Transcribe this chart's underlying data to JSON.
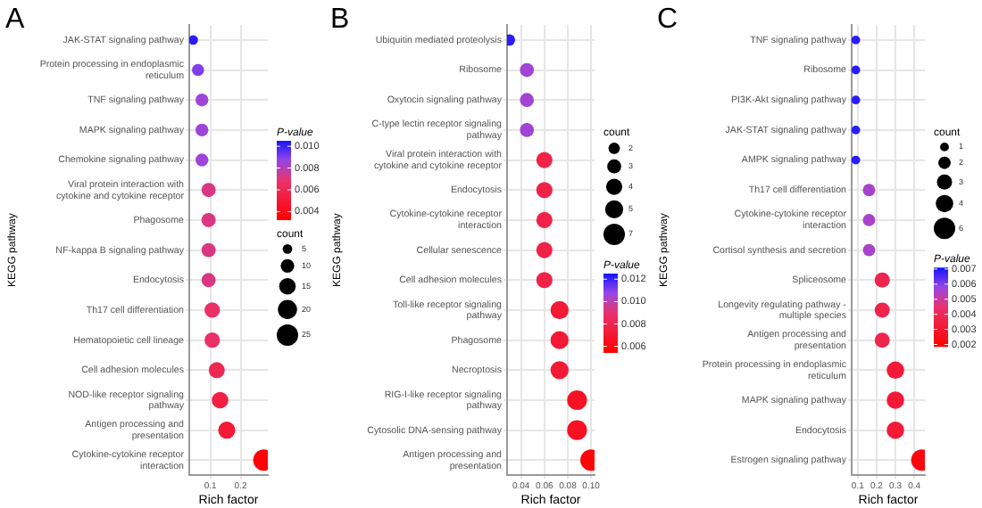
{
  "chart_data": [
    {
      "type": "bubble",
      "orientation": "horizontal",
      "title": "A",
      "xlabel": "Rich factor",
      "ylabel": "KEGG pathway",
      "clabel": "P-value",
      "legend_title": "count",
      "grid": true,
      "categories": [
        "JAK-STAT signaling pathway",
        "Protein processing in endoplasmic reticulum",
        "TNF signaling pathway",
        "MAPK signaling pathway",
        "Chemokine signaling pathway",
        "Viral protein interaction with cytokine and cytokine receptor",
        "Phagosome",
        "NF-kappa B signaling pathway",
        "Endocytosis",
        "Th17 cell differentiation",
        "Hematopoietic cell lineage",
        "Cell adhesion molecules",
        "NOD-like receptor signaling pathway",
        "Antigen processing and presentation",
        "Cytokine-cytokine receptor interaction"
      ],
      "values": [
        0.043,
        0.059,
        0.072,
        0.072,
        0.072,
        0.094,
        0.094,
        0.094,
        0.094,
        0.106,
        0.106,
        0.121,
        0.132,
        0.154,
        0.277
      ],
      "sizes": [
        5,
        8,
        9,
        9,
        9,
        11,
        11,
        11,
        11,
        13,
        13,
        14,
        15,
        16,
        25
      ],
      "cvalues": [
        0.0102,
        0.009,
        0.0085,
        0.0085,
        0.0085,
        0.0072,
        0.0072,
        0.0072,
        0.0072,
        0.0066,
        0.0066,
        0.006,
        0.0055,
        0.005,
        0.0035
      ],
      "size_legend": [
        5,
        10,
        15,
        20,
        25
      ],
      "xlim": [
        0.03,
        0.29
      ],
      "xticks": [
        0.1,
        0.2
      ],
      "clim": [
        0.0033,
        0.0105
      ],
      "cticks": [
        {
          "value": 0.004,
          "label": "0.004"
        },
        {
          "value": 0.006,
          "label": "0.006"
        },
        {
          "value": 0.008,
          "label": "0.008"
        },
        {
          "value": 0.01,
          "label": "0.010"
        }
      ]
    },
    {
      "type": "bubble",
      "orientation": "horizontal",
      "title": "B",
      "xlabel": "Rich factor",
      "ylabel": "KEGG pathway",
      "clabel": "P-value",
      "legend_title": "count",
      "grid": true,
      "categories": [
        "Ubiquitin mediated proteolysis",
        "Ribosome",
        "Oxytocin signaling pathway",
        "C-type lectin receptor signaling pathway",
        "Viral protein interaction with cytokine and cytokine receptor",
        "Endocytosis",
        "Cytokine-cytokine receptor interaction",
        "Cellular senescence",
        "Cell adhesion molecules",
        "Toll-like receptor signaling pathway",
        "Phagosome",
        "Necroptosis",
        "RIG-I-like receptor signaling pathway",
        "Cytosolic DNA-sensing pathway",
        "Antigen processing and presentation"
      ],
      "values": [
        0.03,
        0.045,
        0.045,
        0.045,
        0.06,
        0.06,
        0.06,
        0.06,
        0.06,
        0.073,
        0.073,
        0.073,
        0.088,
        0.088,
        0.1
      ],
      "sizes": [
        2,
        3,
        3,
        3,
        4,
        4,
        4,
        4,
        4,
        5,
        5,
        5,
        6,
        6,
        7
      ],
      "cvalues": [
        0.0122,
        0.0105,
        0.0105,
        0.0105,
        0.0078,
        0.0078,
        0.0078,
        0.0078,
        0.0078,
        0.0072,
        0.0072,
        0.0072,
        0.0066,
        0.0066,
        0.0058
      ],
      "size_legend": [
        2,
        3,
        4,
        5,
        7
      ],
      "xlim": [
        0.028,
        0.103
      ],
      "xticks": [
        0.04,
        0.06,
        0.08,
        {
          "value": 0.1,
          "label": "0.10"
        }
      ],
      "clim": [
        0.0055,
        0.0125
      ],
      "cticks": [
        {
          "value": 0.006,
          "label": "0.006"
        },
        {
          "value": 0.008,
          "label": "0.008"
        },
        {
          "value": 0.01,
          "label": "0.010"
        },
        {
          "value": 0.012,
          "label": "0.012"
        }
      ]
    },
    {
      "type": "bubble",
      "orientation": "horizontal",
      "title": "C",
      "xlabel": "Rich factor",
      "ylabel": "KEGG pathway",
      "clabel": "P-value",
      "legend_title": "count",
      "grid": true,
      "categories": [
        "TNF signaling pathway",
        "Ribosome",
        "PI3K-Akt signaling pathway",
        "JAK-STAT signaling pathway",
        "AMPK signaling pathway",
        "Th17 cell differentiation",
        "Cytokine-cytokine receptor interaction",
        "Cortisol synthesis and secretion",
        "Spliceosome",
        "Longevity regulating pathway - multiple species",
        "Antigen processing and presentation",
        "Protein processing in endoplasmic reticulum",
        "MAPK signaling pathway",
        "Endocytosis",
        "Estrogen signaling pathway"
      ],
      "values": [
        0.09,
        0.09,
        0.09,
        0.09,
        0.09,
        0.16,
        0.16,
        0.16,
        0.23,
        0.23,
        0.23,
        0.3,
        0.3,
        0.3,
        0.44
      ],
      "sizes": [
        1,
        1,
        1,
        1,
        1,
        2,
        2,
        2,
        3,
        3,
        3,
        4,
        4,
        4,
        6
      ],
      "cvalues": [
        0.0069,
        0.0069,
        0.0069,
        0.0069,
        0.0069,
        0.0055,
        0.0055,
        0.0055,
        0.0037,
        0.0037,
        0.0037,
        0.0032,
        0.0032,
        0.0032,
        0.0022
      ],
      "size_legend": [
        1,
        2,
        3,
        4,
        6
      ],
      "xlim": [
        0.068,
        0.456
      ],
      "xticks": [
        0.1,
        0.2,
        0.3,
        0.4
      ],
      "clim": [
        0.0019,
        0.0071
      ],
      "cticks": [
        0.002,
        0.003,
        0.004,
        0.005,
        0.006,
        0.007
      ]
    }
  ]
}
